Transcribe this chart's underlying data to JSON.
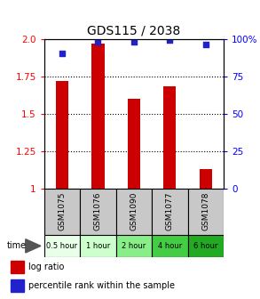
{
  "title": "GDS115 / 2038",
  "samples": [
    "GSM1075",
    "GSM1076",
    "GSM1090",
    "GSM1077",
    "GSM1078"
  ],
  "time_labels": [
    "0.5 hour",
    "1 hour",
    "2 hour",
    "4 hour",
    "6 hour"
  ],
  "log_ratio": [
    1.72,
    1.97,
    1.6,
    1.68,
    1.13
  ],
  "percentile": [
    90,
    98,
    98,
    99,
    96
  ],
  "ylim_left": [
    1.0,
    2.0
  ],
  "ylim_right": [
    0,
    100
  ],
  "yticks_left": [
    1.0,
    1.25,
    1.5,
    1.75,
    2.0
  ],
  "yticks_right": [
    0,
    25,
    50,
    75,
    100
  ],
  "bar_color": "#cc0000",
  "dot_color": "#2222cc",
  "bar_width": 0.35,
  "sample_bg": "#c8c8c8",
  "green_colors": [
    "#e8ffe8",
    "#ccffcc",
    "#88ee88",
    "#44cc44",
    "#22aa22"
  ],
  "legend_bar_label": "log ratio",
  "legend_dot_label": "percentile rank within the sample",
  "grid_yticks": [
    1.25,
    1.5,
    1.75
  ]
}
